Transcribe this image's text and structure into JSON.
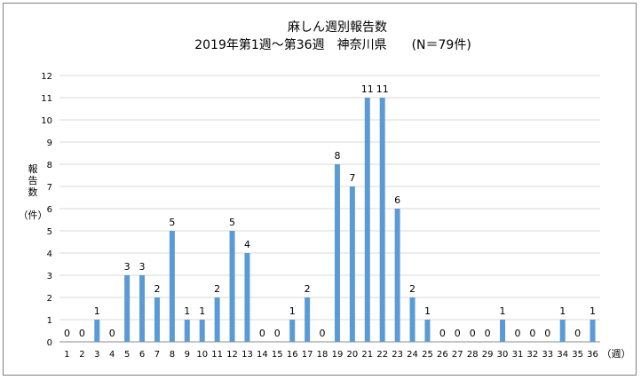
{
  "chart_data": {
    "type": "bar",
    "title": "麻しん週別報告数",
    "subtitle": "2019年第1週～第36週　神奈川県　　(N＝79件)",
    "ylabel_top": "報告数",
    "ylabel_unit": "（件）",
    "xlabel": "（週）",
    "ylim": [
      0,
      12
    ],
    "yticks": [
      "0",
      "1",
      "2",
      "3",
      "4",
      "5",
      "6",
      "7",
      "8",
      "9",
      "10",
      "11",
      "12"
    ],
    "grid": true,
    "bar_color": "#5b9bd5",
    "categories": [
      "1",
      "2",
      "3",
      "4",
      "5",
      "6",
      "7",
      "8",
      "9",
      "10",
      "11",
      "12",
      "13",
      "14",
      "15",
      "16",
      "17",
      "18",
      "19",
      "20",
      "21",
      "22",
      "23",
      "24",
      "25",
      "26",
      "27",
      "28",
      "29",
      "30",
      "31",
      "32",
      "33",
      "34",
      "35",
      "36"
    ],
    "values": [
      0,
      0,
      1,
      0,
      3,
      3,
      2,
      5,
      1,
      1,
      2,
      5,
      4,
      0,
      0,
      1,
      2,
      0,
      8,
      7,
      11,
      11,
      6,
      2,
      1,
      0,
      0,
      0,
      0,
      1,
      0,
      0,
      0,
      1,
      0,
      1
    ]
  }
}
